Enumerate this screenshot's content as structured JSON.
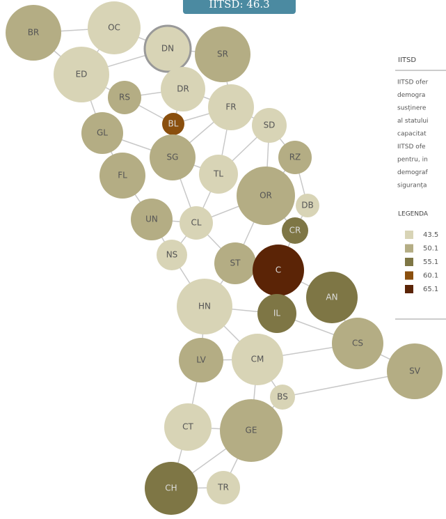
{
  "tooltip": "IITSD: 46.3",
  "panel": {
    "title": "IITSD",
    "lines": [
      "IITSD ofer",
      "demogra",
      "susținere",
      "al statului",
      "capacitat",
      "IITSD ofe",
      "pentru, in",
      "demograf",
      "siguranța"
    ],
    "legend_title": "LEGENDA",
    "legend": [
      {
        "label": "43.5",
        "color": "#d8d4b6"
      },
      {
        "label": "50.1",
        "color": "#b4ad84"
      },
      {
        "label": "55.1",
        "color": "#7e7645"
      },
      {
        "label": "60.1",
        "color": "#8a4f0e"
      },
      {
        "label": "65.1",
        "color": "#5b2406"
      }
    ]
  },
  "nodes": [
    {
      "label": "BR",
      "color": "#b4ad84"
    },
    {
      "label": "OC",
      "color": "#d8d4b6"
    },
    {
      "label": "DN",
      "color": "#d8d4b6"
    },
    {
      "label": "SR",
      "color": "#b4ad84"
    },
    {
      "label": "ED",
      "color": "#d8d4b6"
    },
    {
      "label": "DR",
      "color": "#d8d4b6"
    },
    {
      "label": "RS",
      "color": "#b4ad84"
    },
    {
      "label": "FR",
      "color": "#d8d4b6"
    },
    {
      "label": "BL",
      "color": "#8a4f0e"
    },
    {
      "label": "SD",
      "color": "#d8d4b6"
    },
    {
      "label": "GL",
      "color": "#b4ad84"
    },
    {
      "label": "SG",
      "color": "#b4ad84"
    },
    {
      "label": "RZ",
      "color": "#b4ad84"
    },
    {
      "label": "FL",
      "color": "#b4ad84"
    },
    {
      "label": "TL",
      "color": "#d8d4b6"
    },
    {
      "label": "OR",
      "color": "#b4ad84"
    },
    {
      "label": "DB",
      "color": "#d8d4b6"
    },
    {
      "label": "UN",
      "color": "#b4ad84"
    },
    {
      "label": "CL",
      "color": "#d8d4b6"
    },
    {
      "label": "CR",
      "color": "#7e7645"
    },
    {
      "label": "NS",
      "color": "#d8d4b6"
    },
    {
      "label": "ST",
      "color": "#b4ad84"
    },
    {
      "label": "C",
      "color": "#5b2406"
    },
    {
      "label": "HN",
      "color": "#d8d4b6"
    },
    {
      "label": "AN",
      "color": "#7e7645"
    },
    {
      "label": "IL",
      "color": "#7e7645"
    },
    {
      "label": "CS",
      "color": "#b4ad84"
    },
    {
      "label": "LV",
      "color": "#b4ad84"
    },
    {
      "label": "CM",
      "color": "#d8d4b6"
    },
    {
      "label": "SV",
      "color": "#b4ad84"
    },
    {
      "label": "BS",
      "color": "#d8d4b6"
    },
    {
      "label": "CT",
      "color": "#d8d4b6"
    },
    {
      "label": "GE",
      "color": "#b4ad84"
    },
    {
      "label": "CH",
      "color": "#7e7645"
    },
    {
      "label": "TR",
      "color": "#d8d4b6"
    }
  ]
}
